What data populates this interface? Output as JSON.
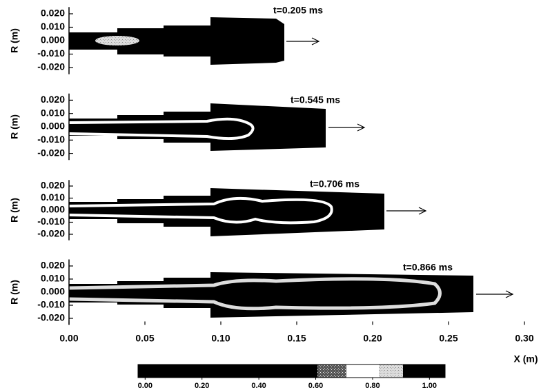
{
  "chart_data": {
    "type": "contour",
    "xlabel": "X (m)",
    "ylabel": "R (m)",
    "xlim": [
      0,
      0.3
    ],
    "xticks": [
      {
        "value": 0,
        "label": "0.00"
      },
      {
        "value": 0.05,
        "label": "0.05"
      },
      {
        "value": 0.1,
        "label": "0.10"
      },
      {
        "value": 0.15,
        "label": "0.15"
      },
      {
        "value": 0.2,
        "label": "0.20"
      },
      {
        "value": 0.25,
        "label": "0.25"
      },
      {
        "value": 0.3,
        "label": "0.30"
      }
    ],
    "ylim": [
      -0.025,
      0.025
    ],
    "yticks": [
      {
        "value": 0.02,
        "label": "0.020"
      },
      {
        "value": 0.01,
        "label": "0.010"
      },
      {
        "value": 0,
        "label": "0.000"
      },
      {
        "value": -0.01,
        "label": "-0.010"
      },
      {
        "value": -0.02,
        "label": "-0.020"
      }
    ],
    "panels": [
      {
        "annotation": "t=0.205 ms"
      },
      {
        "annotation": "t=0.545 ms"
      },
      {
        "annotation": "t=0.706 ms"
      },
      {
        "annotation": "t=0.866 ms"
      }
    ],
    "colorbar": {
      "clim": [
        -0.025,
        1.055
      ],
      "ticks": [
        {
          "value": 0,
          "label": "0.00"
        },
        {
          "value": 0.2,
          "label": "0.20"
        },
        {
          "value": 0.4,
          "label": "0.40"
        },
        {
          "value": 0.6,
          "label": "0.60"
        },
        {
          "value": 0.8,
          "label": "0.80"
        },
        {
          "value": 1,
          "label": "1.00"
        }
      ]
    }
  }
}
